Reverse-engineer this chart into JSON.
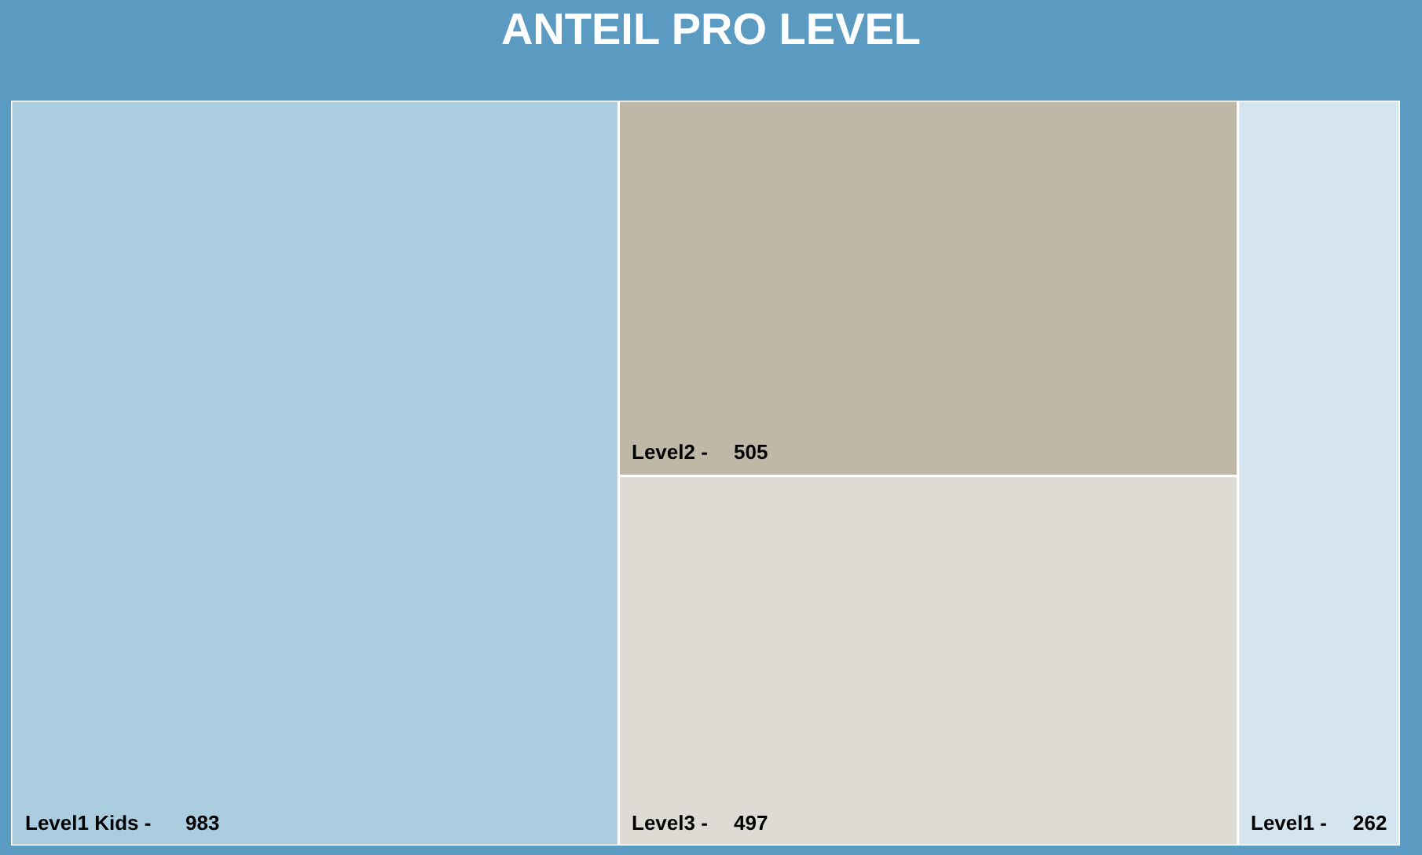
{
  "chart_data": {
    "type": "other",
    "title": "ANTEIL PRO LEVEL",
    "categories": [
      "Level1 Kids -",
      "Level2 -",
      "Level3 -",
      "Level1 -"
    ],
    "values": [
      983,
      505,
      497,
      262
    ],
    "data_labels": true,
    "colors": [
      "#abcde0",
      "#bfb8a6",
      "#dedbd5",
      "#d4e5ef"
    ]
  }
}
